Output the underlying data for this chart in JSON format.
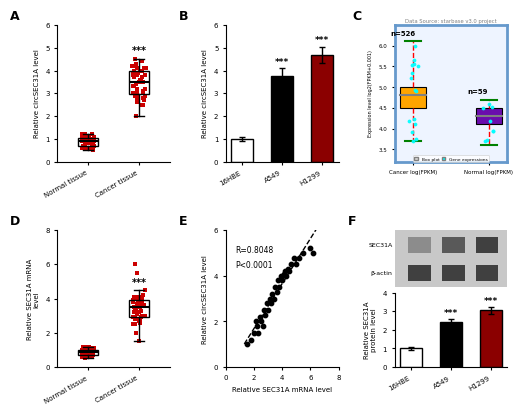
{
  "A": {
    "panel_label": "A",
    "ylabel": "Relative circSEC31A level",
    "groups": [
      "Normal tissue",
      "Cancer tissue"
    ],
    "normal_dots": [
      0.6,
      0.7,
      0.8,
      0.9,
      1.0,
      1.1,
      1.2,
      0.5,
      0.8,
      1.0,
      1.1,
      0.9,
      0.7,
      0.6,
      1.0,
      1.2,
      0.8,
      0.9,
      1.1,
      0.7,
      0.6,
      1.0,
      1.2,
      1.1,
      0.8,
      0.9,
      0.7,
      1.0,
      1.1,
      0.6,
      0.8,
      1.0,
      0.9,
      0.7,
      1.1,
      1.2,
      0.8,
      0.6,
      1.0,
      0.9,
      0.7,
      1.1,
      1.0,
      0.8
    ],
    "cancer_dots": [
      2.0,
      2.5,
      3.0,
      3.5,
      4.0,
      4.5,
      3.8,
      2.8,
      3.2,
      4.1,
      3.6,
      2.9,
      3.7,
      4.2,
      3.0,
      2.7,
      3.9,
      4.3,
      3.1,
      2.6,
      3.4,
      4.0,
      3.3,
      2.8,
      3.9,
      4.1,
      3.5,
      2.9,
      4.2,
      3.0,
      3.7,
      4.4,
      2.5,
      3.8,
      3.2,
      4.0,
      2.7,
      3.6,
      4.1,
      3.3,
      2.9,
      3.8,
      4.0,
      3.5
    ],
    "star_text": "***",
    "ylim": [
      0,
      6
    ],
    "yticks": [
      0,
      1,
      2,
      3,
      4,
      5,
      6
    ]
  },
  "B": {
    "panel_label": "B",
    "ylabel": "Relative circSEC31A level",
    "categories": [
      "16HBE",
      "A549",
      "H1299"
    ],
    "values": [
      1.0,
      3.75,
      4.7
    ],
    "errors": [
      0.07,
      0.35,
      0.35
    ],
    "colors": [
      "white",
      "black",
      "#8B0000"
    ],
    "edge_colors": [
      "black",
      "black",
      "black"
    ],
    "star_texts": [
      "",
      "***",
      "***"
    ],
    "ylim": [
      0,
      6
    ],
    "yticks": [
      0,
      1,
      2,
      3,
      4,
      5,
      6
    ]
  },
  "C": {
    "panel_label": "C",
    "title": "Data Source: starbase v3.0 project",
    "xlabel_cancer": "Cancer log(FPKM)",
    "xlabel_normal": "Normal log(FPKM)",
    "n_cancer": "n=526",
    "n_normal": "n=59",
    "cancer_box": {
      "median": 4.8,
      "q1": 4.5,
      "q3": 5.0,
      "whislo": 3.7,
      "whishi": 6.1
    },
    "normal_box": {
      "median": 4.3,
      "q1": 4.1,
      "q3": 4.5,
      "whislo": 3.6,
      "whishi": 4.7
    },
    "cancer_color": "#FFA500",
    "normal_color": "#6A0DAD",
    "ylabel": "Expression level log2(FPKM+0.001)",
    "ylim": [
      3.2,
      6.5
    ],
    "yticks": [
      3.5,
      4.0,
      4.5,
      5.0,
      5.5,
      6.0
    ],
    "border_color": "#6699CC",
    "cancer_dots_y": [
      6.1,
      5.8,
      5.5,
      5.2,
      5.0,
      4.8,
      4.7,
      4.6,
      4.5,
      4.4,
      4.3
    ],
    "normal_dots_y": [
      4.7,
      4.5,
      4.3,
      4.2,
      4.1
    ],
    "whisker_color": "red",
    "cap_color": "green",
    "median_color": "#808080"
  },
  "D": {
    "panel_label": "D",
    "ylabel": "Relative SEC31A mRNA\nlevel",
    "groups": [
      "Normal tissue",
      "Cancer tissue"
    ],
    "normal_dots": [
      0.5,
      0.7,
      0.8,
      1.0,
      1.1,
      1.2,
      0.9,
      0.6,
      0.8,
      1.0,
      1.1,
      0.7,
      0.6,
      1.0,
      1.2,
      0.8,
      0.9,
      0.7,
      1.0,
      0.6,
      0.8,
      1.1,
      0.9,
      0.7,
      1.0,
      1.2,
      0.8,
      0.6,
      0.9,
      1.0,
      0.7,
      1.1,
      0.8,
      0.6,
      1.0,
      0.9,
      0.7,
      1.1,
      0.8,
      0.6,
      1.0,
      1.2,
      0.9,
      0.7
    ],
    "cancer_dots": [
      1.5,
      2.0,
      2.5,
      3.0,
      3.5,
      4.0,
      4.5,
      3.8,
      2.8,
      3.2,
      4.1,
      3.6,
      2.9,
      3.7,
      4.2,
      3.0,
      2.7,
      3.9,
      3.1,
      2.6,
      3.4,
      4.0,
      3.3,
      2.8,
      3.9,
      4.1,
      3.5,
      2.9,
      3.0,
      3.7,
      2.5,
      3.8,
      3.2,
      4.0,
      2.7,
      3.6,
      4.1,
      3.3,
      2.9,
      3.8,
      4.0,
      3.5,
      6.0,
      5.5
    ],
    "star_text": "***",
    "ylim": [
      0,
      8
    ],
    "yticks": [
      0,
      2,
      4,
      6,
      8
    ]
  },
  "E": {
    "panel_label": "E",
    "xlabel": "Relative SEC31A mRNA level",
    "ylabel": "Relative circSEC31A level",
    "r_text": "R=0.8048",
    "p_text": "P<0.0001",
    "xlim": [
      0,
      8
    ],
    "ylim": [
      0,
      6
    ],
    "xticks": [
      0,
      2,
      4,
      6,
      8
    ],
    "yticks": [
      0,
      2,
      4,
      6
    ],
    "scatter_x": [
      1.5,
      1.8,
      2.0,
      2.1,
      2.2,
      2.3,
      2.4,
      2.5,
      2.6,
      2.7,
      2.8,
      2.9,
      3.0,
      3.1,
      3.2,
      3.3,
      3.4,
      3.5,
      3.6,
      3.7,
      3.8,
      3.9,
      4.0,
      4.1,
      4.2,
      4.3,
      4.4,
      4.5,
      4.6,
      4.8,
      5.0,
      5.2,
      5.5,
      6.0,
      6.2
    ],
    "scatter_y": [
      1.0,
      1.2,
      1.5,
      2.0,
      1.8,
      1.5,
      2.2,
      2.0,
      1.8,
      2.5,
      2.3,
      2.8,
      2.5,
      3.0,
      2.8,
      3.2,
      3.0,
      3.5,
      3.3,
      3.8,
      3.5,
      4.0,
      3.8,
      4.1,
      4.2,
      4.0,
      4.3,
      4.2,
      4.5,
      4.8,
      4.5,
      4.8,
      5.0,
      5.2,
      5.0
    ]
  },
  "F": {
    "panel_label": "F",
    "ylabel": "Relative SEC31A\nprotein level",
    "categories": [
      "16HBE",
      "A549",
      "H1299"
    ],
    "values": [
      1.0,
      2.4,
      3.05
    ],
    "errors": [
      0.08,
      0.18,
      0.18
    ],
    "colors": [
      "white",
      "black",
      "#8B0000"
    ],
    "edge_colors": [
      "black",
      "black",
      "black"
    ],
    "star_texts": [
      "",
      "***",
      "***"
    ],
    "ylim": [
      0,
      4
    ],
    "yticks": [
      0,
      1,
      2,
      3,
      4
    ],
    "wb_label1": "SEC31A",
    "wb_label2": "β-actin",
    "wb_band_intensities_sec31a": [
      0.55,
      0.35,
      0.25
    ],
    "wb_band_intensities_actin": [
      0.25,
      0.25,
      0.25
    ]
  }
}
